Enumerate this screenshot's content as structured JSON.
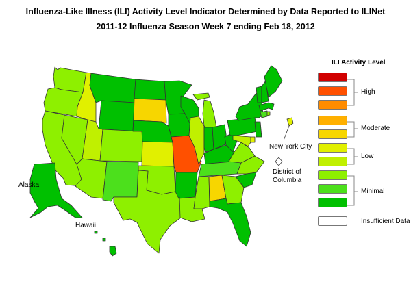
{
  "title_line1": "Influenza-Like Illness (ILI) Activity Level Indicator Determined by Data Reported to ILINet",
  "title_line2": "2011-12  Influenza Season Week  7 ending Feb 18, 2012",
  "map_labels": {
    "nyc": "New York City",
    "dc": "District of Columbia",
    "alaska": "Alaska",
    "hawaii": "Hawaii"
  },
  "legend": {
    "title": "ILI Activity Level",
    "levels": [
      {
        "level": 10,
        "color": "#d10000"
      },
      {
        "level": 9,
        "color": "#ff5000"
      },
      {
        "level": 8,
        "color": "#ff8c00"
      },
      {
        "level": 7,
        "color": "#ffb000"
      },
      {
        "level": 6,
        "color": "#f7d600"
      },
      {
        "level": 5,
        "color": "#e1f000"
      },
      {
        "level": 4,
        "color": "#c0f000"
      },
      {
        "level": 3,
        "color": "#8ef000"
      },
      {
        "level": 2,
        "color": "#4ce01c"
      },
      {
        "level": 1,
        "color": "#00c000"
      },
      {
        "level": 0,
        "color": "#ffffff"
      }
    ],
    "groups": [
      {
        "label": "High"
      },
      {
        "label": "Moderate"
      },
      {
        "label": "Low"
      },
      {
        "label": "Minimal"
      },
      {
        "label": "Insufficient Data"
      }
    ]
  },
  "states": {
    "WA": 3,
    "OR": 3,
    "CA": 3,
    "NV": 3,
    "ID": 5,
    "MT": 1,
    "WY": 1,
    "UT": 4,
    "AZ": 3,
    "CO": 3,
    "NM": 2,
    "ND": 1,
    "SD": 6,
    "NE": 1,
    "KS": 5,
    "OK": 3,
    "TX": 3,
    "MN": 1,
    "IA": 1,
    "MO": 9,
    "AR": 1,
    "LA": 3,
    "WI": 1,
    "IL": 4,
    "MS": 3,
    "MI": 3,
    "IN": 1,
    "KY": 1,
    "TN": 2,
    "AL": 6,
    "OH": 1,
    "WV": 1,
    "VA": 3,
    "NC": 3,
    "SC": 1,
    "GA": 3,
    "FL": 1,
    "PA": 1,
    "NY": 1,
    "VT": 1,
    "NH": 1,
    "ME": 1,
    "MA": 1,
    "CT": 2,
    "RI": 3,
    "NJ": 1,
    "DE": 5,
    "MD": 4,
    "AK": 1,
    "HI": 1,
    "NYC": 5,
    "DC": 0
  }
}
